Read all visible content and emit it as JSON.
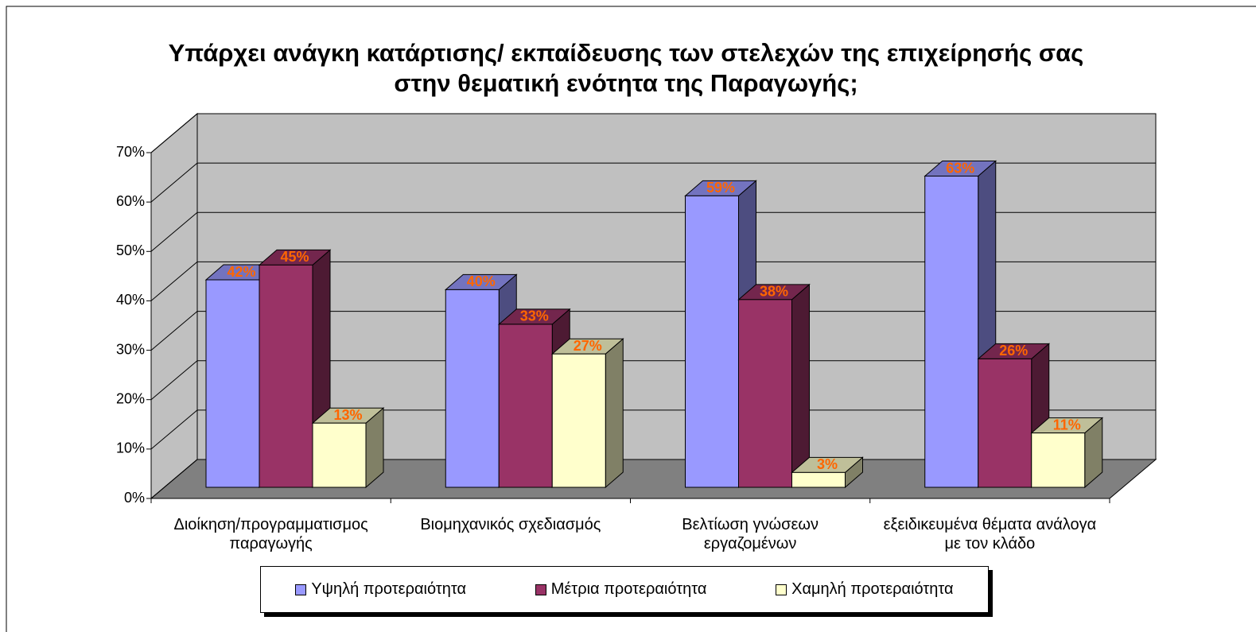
{
  "chart_data": {
    "type": "bar3d",
    "title": "Υπάρχει ανάγκη κατάρτισης/ εκπαίδευσης των στελεχών της επιχείρησής σας στην θεματική ενότητα της Παραγωγής;",
    "categories": [
      "Διοίκηση/προγραμματισμος παραγωγής",
      "Βιομηχανικός σχεδιασμός",
      "Βελτίωση γνώσεων εργαζομένων",
      "εξειδικευμένα θέματα ανάλογα με τον κλάδο"
    ],
    "series": [
      {
        "name": "Υψηλή προτεραιότητα",
        "color": "#9999ff",
        "values": [
          42,
          40,
          59,
          63
        ],
        "value_labels": [
          "42%",
          "40%",
          "59%",
          "63%"
        ]
      },
      {
        "name": "Μέτρια προτεραιότητα",
        "color": "#993366",
        "values": [
          45,
          33,
          38,
          26
        ],
        "value_labels": [
          "45%",
          "33%",
          "38%",
          "26%"
        ]
      },
      {
        "name": "Χαμηλή προτεραιότητα",
        "color": "#ffffcc",
        "values": [
          13,
          27,
          3,
          11
        ],
        "value_labels": [
          "13%",
          "27%",
          "3%",
          "11%"
        ]
      }
    ],
    "ylim": [
      0,
      70
    ],
    "yticks": [
      {
        "value": 0,
        "label": "0%"
      },
      {
        "value": 10,
        "label": "10%"
      },
      {
        "value": 20,
        "label": "20%"
      },
      {
        "value": 30,
        "label": "30%"
      },
      {
        "value": 40,
        "label": "40%"
      },
      {
        "value": 50,
        "label": "50%"
      },
      {
        "value": 60,
        "label": "60%"
      },
      {
        "value": 70,
        "label": "70%"
      }
    ],
    "grid": true,
    "legend": "bottom"
  }
}
